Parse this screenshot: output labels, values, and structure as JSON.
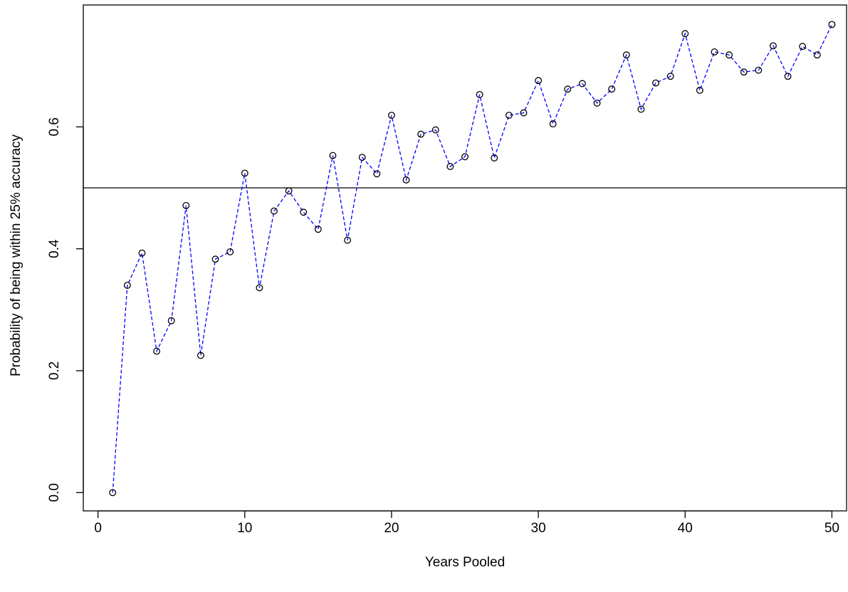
{
  "chart_data": {
    "type": "line",
    "title": "",
    "xlabel": "Years Pooled",
    "ylabel": "Probability of being within 25% accuracy",
    "xlim": [
      -1,
      51
    ],
    "ylim": [
      -0.03,
      0.8
    ],
    "xticks": [
      0,
      10,
      20,
      30,
      40,
      50
    ],
    "xtick_labels": [
      "0",
      "10",
      "20",
      "30",
      "40",
      "50"
    ],
    "yticks": [
      0.0,
      0.2,
      0.4,
      0.6
    ],
    "ytick_labels": [
      "0.0",
      "0.2",
      "0.4",
      "0.6"
    ],
    "grid": false,
    "reference_line": {
      "orientation": "horizontal",
      "y": 0.5,
      "color": "#000000"
    },
    "series": [
      {
        "line_style": "dashed",
        "line_color": "#0000ff",
        "marker": "open-circle",
        "marker_color": "#000000",
        "x": [
          1,
          2,
          3,
          4,
          5,
          6,
          7,
          8,
          9,
          10,
          11,
          12,
          13,
          14,
          15,
          16,
          17,
          18,
          19,
          20,
          21,
          22,
          23,
          24,
          25,
          26,
          27,
          28,
          29,
          30,
          31,
          32,
          33,
          34,
          35,
          36,
          37,
          38,
          39,
          40,
          41,
          42,
          43,
          44,
          45,
          46,
          47,
          48,
          49,
          50
        ],
        "y": [
          0.0,
          0.34,
          0.393,
          0.232,
          0.282,
          0.471,
          0.225,
          0.383,
          0.395,
          0.524,
          0.336,
          0.462,
          0.495,
          0.46,
          0.432,
          0.553,
          0.414,
          0.55,
          0.523,
          0.619,
          0.513,
          0.588,
          0.595,
          0.535,
          0.551,
          0.653,
          0.549,
          0.619,
          0.623,
          0.676,
          0.605,
          0.662,
          0.671,
          0.639,
          0.662,
          0.718,
          0.629,
          0.672,
          0.683,
          0.753,
          0.66,
          0.723,
          0.718,
          0.69,
          0.693,
          0.733,
          0.683,
          0.732,
          0.718,
          0.768
        ]
      }
    ]
  }
}
